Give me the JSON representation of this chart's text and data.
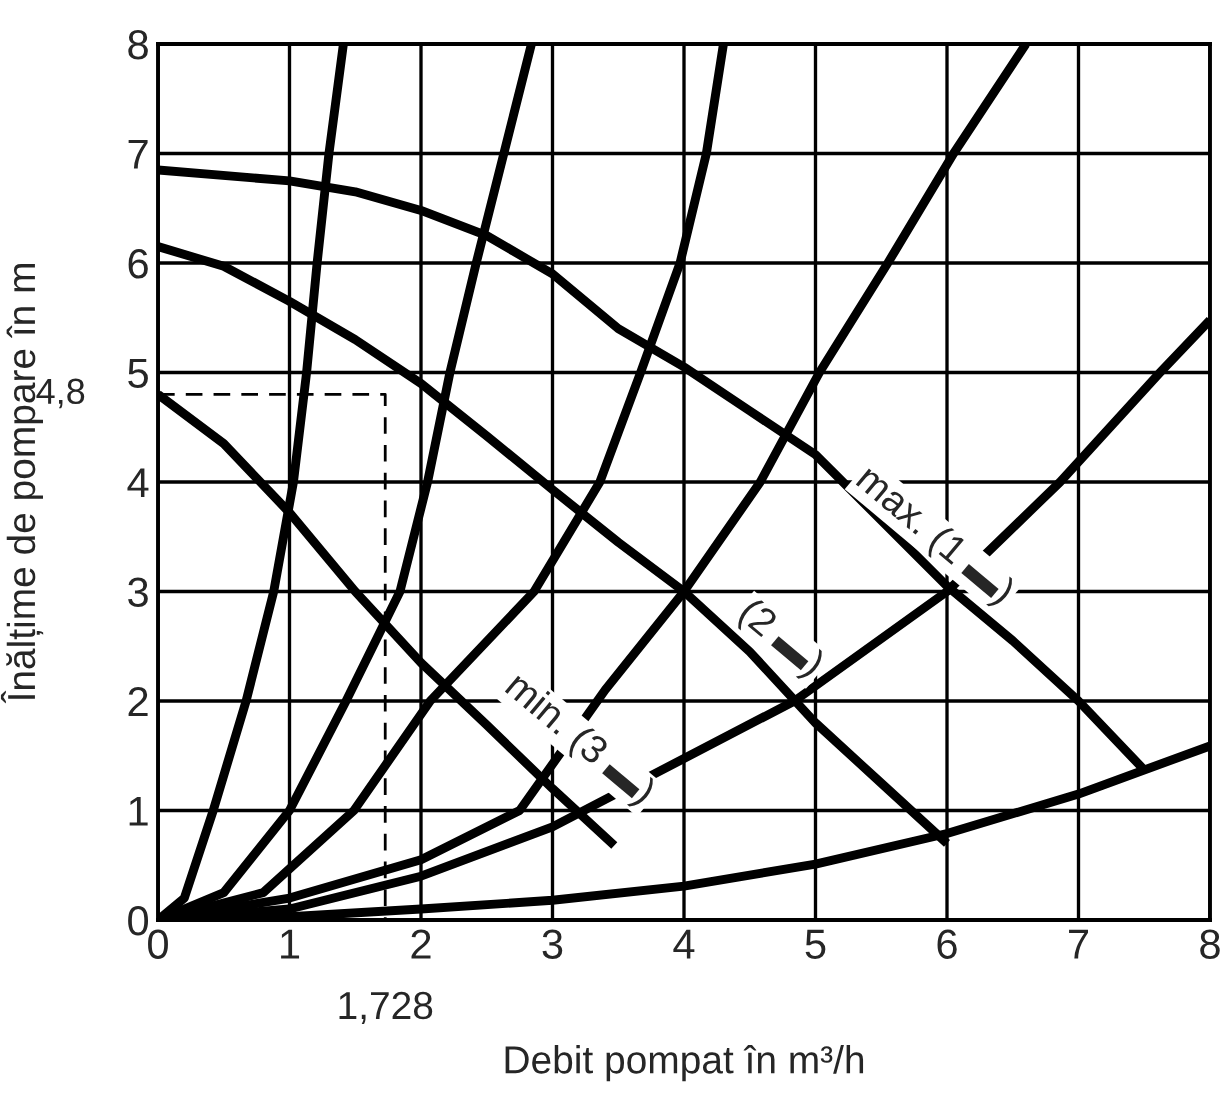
{
  "chart_data": {
    "type": "line",
    "xlabel": "Debit pompat în m³/h",
    "ylabel": "Înălțime de pompare în m",
    "xlim": [
      0,
      8
    ],
    "ylim": [
      0,
      8
    ],
    "xticks": [
      0,
      1,
      2,
      3,
      4,
      5,
      6,
      7,
      8
    ],
    "yticks": [
      0,
      1,
      2,
      3,
      4,
      5,
      6,
      7,
      8
    ],
    "grid": true,
    "line_style": "solid",
    "series": [
      {
        "color": "#000000",
        "x": [
          0,
          1,
          1.5,
          2,
          2.5,
          3,
          3.5,
          4,
          4.5,
          5,
          5.5,
          6,
          6.5,
          7,
          7.5
        ],
        "values": [
          6.85,
          6.75,
          6.65,
          6.48,
          6.25,
          5.9,
          5.4,
          5.05,
          4.65,
          4.25,
          3.65,
          3.05,
          2.55,
          2.0,
          1.37
        ]
      },
      {
        "color": "#000000",
        "x": [
          0,
          0.5,
          1,
          1.5,
          2,
          2.5,
          3,
          3.5,
          4,
          4.5,
          5,
          5.5,
          6
        ],
        "values": [
          6.15,
          5.97,
          5.65,
          5.3,
          4.9,
          4.42,
          3.93,
          3.45,
          3.0,
          2.45,
          1.8,
          1.25,
          0.7
        ]
      },
      {
        "color": "#000000",
        "x": [
          0,
          0.5,
          1,
          1.5,
          2,
          2.5,
          3,
          3.47
        ],
        "values": [
          4.8,
          4.35,
          3.72,
          3.0,
          2.35,
          1.78,
          1.2,
          0.68
        ]
      },
      {
        "color": "#000000",
        "x": [
          0,
          0.2,
          0.42,
          0.67,
          0.88,
          1.03,
          1.13,
          1.21,
          1.3,
          1.41
        ],
        "values": [
          0,
          0.2,
          1,
          2,
          3,
          4,
          5,
          6,
          7,
          8
        ]
      },
      {
        "color": "#000000",
        "x": [
          0,
          0.5,
          1.0,
          1.43,
          1.84,
          2.05,
          2.22,
          2.42,
          2.63,
          2.84
        ],
        "values": [
          0,
          0.25,
          1,
          2,
          3,
          4,
          5,
          6,
          7,
          8
        ]
      },
      {
        "color": "#000000",
        "x": [
          0,
          0.8,
          1.49,
          2.07,
          2.86,
          3.36,
          3.67,
          3.97,
          4.17,
          4.3
        ],
        "values": [
          0,
          0.25,
          1,
          2,
          3,
          4,
          5,
          6,
          7,
          8
        ]
      },
      {
        "color": "#000000",
        "x": [
          0,
          1,
          2,
          2.75,
          3.4,
          4,
          4.58,
          5.03,
          5.55,
          6.05,
          6.6
        ],
        "values": [
          0,
          0.2,
          0.55,
          1,
          2.1,
          3,
          4,
          5,
          6,
          7,
          8
        ]
      },
      {
        "color": "#000000",
        "x": [
          0,
          1,
          2,
          3,
          4.84,
          6,
          6.86,
          7.62,
          8
        ],
        "values": [
          0,
          0.1,
          0.4,
          0.85,
          2,
          3,
          4,
          5,
          5.48
        ]
      },
      {
        "color": "#000000",
        "x": [
          0,
          1,
          2,
          3,
          4,
          5,
          6,
          7,
          8
        ],
        "values": [
          0,
          0.03,
          0.1,
          0.18,
          0.31,
          0.51,
          0.79,
          1.15,
          1.59
        ]
      },
      {
        "color": "#000000",
        "line_style": "dashed",
        "x": [
          0,
          1.728,
          1.728
        ],
        "values": [
          4.8,
          4.8,
          0
        ]
      }
    ],
    "annotations": [
      "max. (1 ▬)",
      "(2 ▬)",
      "min. (3 ▬)",
      {
        "text": "4,8",
        "x": 0,
        "y": 4.8
      },
      {
        "text": "1,728",
        "x": 1.728,
        "y": 0
      }
    ]
  }
}
